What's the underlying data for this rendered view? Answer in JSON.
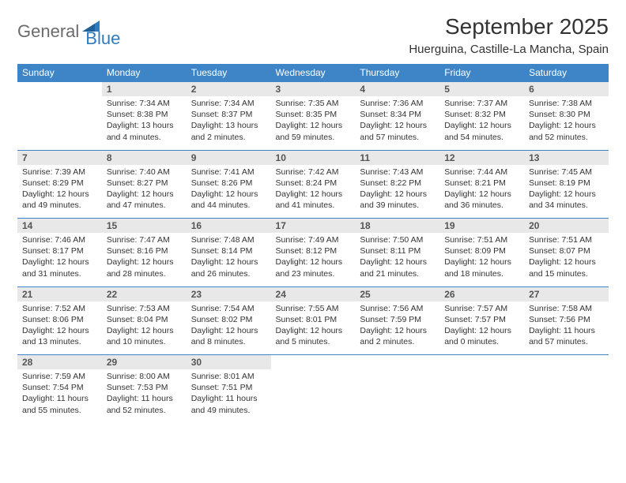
{
  "logo": {
    "text1": "General",
    "text2": "Blue"
  },
  "title": "September 2025",
  "location": "Huerguina, Castille-La Mancha, Spain",
  "weekdays": [
    "Sunday",
    "Monday",
    "Tuesday",
    "Wednesday",
    "Thursday",
    "Friday",
    "Saturday"
  ],
  "colors": {
    "header_bg": "#3d85c6",
    "header_fg": "#ffffff",
    "daynum_bg": "#e8e8e8",
    "rule": "#3d85c6",
    "logo_gray": "#6b6b6b",
    "logo_blue": "#2f7bbf"
  },
  "weeks": [
    [
      null,
      {
        "n": "1",
        "sr": "Sunrise: 7:34 AM",
        "ss": "Sunset: 8:38 PM",
        "dl": "Daylight: 13 hours and 4 minutes."
      },
      {
        "n": "2",
        "sr": "Sunrise: 7:34 AM",
        "ss": "Sunset: 8:37 PM",
        "dl": "Daylight: 13 hours and 2 minutes."
      },
      {
        "n": "3",
        "sr": "Sunrise: 7:35 AM",
        "ss": "Sunset: 8:35 PM",
        "dl": "Daylight: 12 hours and 59 minutes."
      },
      {
        "n": "4",
        "sr": "Sunrise: 7:36 AM",
        "ss": "Sunset: 8:34 PM",
        "dl": "Daylight: 12 hours and 57 minutes."
      },
      {
        "n": "5",
        "sr": "Sunrise: 7:37 AM",
        "ss": "Sunset: 8:32 PM",
        "dl": "Daylight: 12 hours and 54 minutes."
      },
      {
        "n": "6",
        "sr": "Sunrise: 7:38 AM",
        "ss": "Sunset: 8:30 PM",
        "dl": "Daylight: 12 hours and 52 minutes."
      }
    ],
    [
      {
        "n": "7",
        "sr": "Sunrise: 7:39 AM",
        "ss": "Sunset: 8:29 PM",
        "dl": "Daylight: 12 hours and 49 minutes."
      },
      {
        "n": "8",
        "sr": "Sunrise: 7:40 AM",
        "ss": "Sunset: 8:27 PM",
        "dl": "Daylight: 12 hours and 47 minutes."
      },
      {
        "n": "9",
        "sr": "Sunrise: 7:41 AM",
        "ss": "Sunset: 8:26 PM",
        "dl": "Daylight: 12 hours and 44 minutes."
      },
      {
        "n": "10",
        "sr": "Sunrise: 7:42 AM",
        "ss": "Sunset: 8:24 PM",
        "dl": "Daylight: 12 hours and 41 minutes."
      },
      {
        "n": "11",
        "sr": "Sunrise: 7:43 AM",
        "ss": "Sunset: 8:22 PM",
        "dl": "Daylight: 12 hours and 39 minutes."
      },
      {
        "n": "12",
        "sr": "Sunrise: 7:44 AM",
        "ss": "Sunset: 8:21 PM",
        "dl": "Daylight: 12 hours and 36 minutes."
      },
      {
        "n": "13",
        "sr": "Sunrise: 7:45 AM",
        "ss": "Sunset: 8:19 PM",
        "dl": "Daylight: 12 hours and 34 minutes."
      }
    ],
    [
      {
        "n": "14",
        "sr": "Sunrise: 7:46 AM",
        "ss": "Sunset: 8:17 PM",
        "dl": "Daylight: 12 hours and 31 minutes."
      },
      {
        "n": "15",
        "sr": "Sunrise: 7:47 AM",
        "ss": "Sunset: 8:16 PM",
        "dl": "Daylight: 12 hours and 28 minutes."
      },
      {
        "n": "16",
        "sr": "Sunrise: 7:48 AM",
        "ss": "Sunset: 8:14 PM",
        "dl": "Daylight: 12 hours and 26 minutes."
      },
      {
        "n": "17",
        "sr": "Sunrise: 7:49 AM",
        "ss": "Sunset: 8:12 PM",
        "dl": "Daylight: 12 hours and 23 minutes."
      },
      {
        "n": "18",
        "sr": "Sunrise: 7:50 AM",
        "ss": "Sunset: 8:11 PM",
        "dl": "Daylight: 12 hours and 21 minutes."
      },
      {
        "n": "19",
        "sr": "Sunrise: 7:51 AM",
        "ss": "Sunset: 8:09 PM",
        "dl": "Daylight: 12 hours and 18 minutes."
      },
      {
        "n": "20",
        "sr": "Sunrise: 7:51 AM",
        "ss": "Sunset: 8:07 PM",
        "dl": "Daylight: 12 hours and 15 minutes."
      }
    ],
    [
      {
        "n": "21",
        "sr": "Sunrise: 7:52 AM",
        "ss": "Sunset: 8:06 PM",
        "dl": "Daylight: 12 hours and 13 minutes."
      },
      {
        "n": "22",
        "sr": "Sunrise: 7:53 AM",
        "ss": "Sunset: 8:04 PM",
        "dl": "Daylight: 12 hours and 10 minutes."
      },
      {
        "n": "23",
        "sr": "Sunrise: 7:54 AM",
        "ss": "Sunset: 8:02 PM",
        "dl": "Daylight: 12 hours and 8 minutes."
      },
      {
        "n": "24",
        "sr": "Sunrise: 7:55 AM",
        "ss": "Sunset: 8:01 PM",
        "dl": "Daylight: 12 hours and 5 minutes."
      },
      {
        "n": "25",
        "sr": "Sunrise: 7:56 AM",
        "ss": "Sunset: 7:59 PM",
        "dl": "Daylight: 12 hours and 2 minutes."
      },
      {
        "n": "26",
        "sr": "Sunrise: 7:57 AM",
        "ss": "Sunset: 7:57 PM",
        "dl": "Daylight: 12 hours and 0 minutes."
      },
      {
        "n": "27",
        "sr": "Sunrise: 7:58 AM",
        "ss": "Sunset: 7:56 PM",
        "dl": "Daylight: 11 hours and 57 minutes."
      }
    ],
    [
      {
        "n": "28",
        "sr": "Sunrise: 7:59 AM",
        "ss": "Sunset: 7:54 PM",
        "dl": "Daylight: 11 hours and 55 minutes."
      },
      {
        "n": "29",
        "sr": "Sunrise: 8:00 AM",
        "ss": "Sunset: 7:53 PM",
        "dl": "Daylight: 11 hours and 52 minutes."
      },
      {
        "n": "30",
        "sr": "Sunrise: 8:01 AM",
        "ss": "Sunset: 7:51 PM",
        "dl": "Daylight: 11 hours and 49 minutes."
      },
      null,
      null,
      null,
      null
    ]
  ]
}
